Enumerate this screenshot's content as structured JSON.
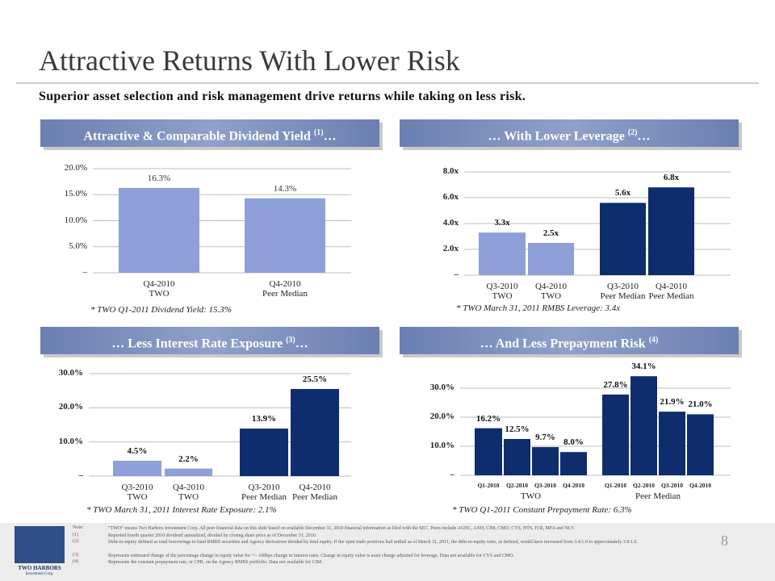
{
  "header": {
    "title": "Attractive Returns With Lower Risk",
    "subtitle": "Superior asset selection and risk management drive returns while taking on less risk."
  },
  "chart_data": [
    {
      "type": "bar",
      "title": "Attractive & Comparable Dividend Yield",
      "title_ref": "(1)",
      "title_end": "…",
      "groups": [
        {
          "color": "#8ea0d8",
          "categories": [
            "Q4-2010\nTWO",
            "Q4-2010\nPeer Median"
          ],
          "values": [
            16.3,
            14.3
          ],
          "value_labels": [
            "16.3%",
            "14.3%"
          ]
        }
      ],
      "ylim": [
        0,
        20
      ],
      "yticks": [
        {
          "value": 0,
          "label": "–"
        },
        {
          "value": 5,
          "label": "5.0%"
        },
        {
          "value": 10,
          "label": "10.0%"
        },
        {
          "value": 15,
          "label": "15.0%"
        },
        {
          "value": 20,
          "label": "20.0%"
        }
      ],
      "grid": true,
      "note": "* TWO Q1-2011  Dividend Yield: 15.3%"
    },
    {
      "type": "bar",
      "title_start": "…",
      "title": "With Lower Leverage",
      "title_ref": "(2)",
      "title_end": "…",
      "groups": [
        {
          "color": "#8ea0d8",
          "categories": [
            "Q3-2010\nTWO",
            "Q4-2010\nTWO"
          ],
          "values": [
            3.3,
            2.5
          ],
          "value_labels": [
            "3.3x",
            "2.5x"
          ]
        },
        {
          "color": "#0d2d6c",
          "categories": [
            "Q3-2010\nPeer Median",
            "Q4-2010\nPeer Median"
          ],
          "values": [
            5.6,
            6.8
          ],
          "value_labels": [
            "5.6x",
            "6.8x"
          ]
        }
      ],
      "ylim": [
        0,
        8
      ],
      "yticks": [
        {
          "value": 0,
          "label": "–"
        },
        {
          "value": 2,
          "label": "2.0x"
        },
        {
          "value": 4,
          "label": "4.0x"
        },
        {
          "value": 6,
          "label": "6.0x"
        },
        {
          "value": 8,
          "label": "8.0x"
        }
      ],
      "grid": true,
      "note": "* TWO March 31, 2011  RMBS Leverage: 3.4x"
    },
    {
      "type": "bar",
      "title_start": "…",
      "title": "Less Interest Rate Exposure",
      "title_ref": "(3)",
      "title_end": "…",
      "groups": [
        {
          "color": "#8ea0d8",
          "categories": [
            "Q3-2010\nTWO",
            "Q4-2010\nTWO"
          ],
          "values": [
            4.5,
            2.2
          ],
          "value_labels": [
            "4.5%",
            "2.2%"
          ]
        },
        {
          "color": "#0d2d6c",
          "categories": [
            "Q3-2010\nPeer Median",
            "Q4-2010\nPeer Median"
          ],
          "values": [
            13.9,
            25.5
          ],
          "value_labels": [
            "13.9%",
            "25.5%"
          ]
        }
      ],
      "ylim": [
        0,
        30
      ],
      "yticks": [
        {
          "value": 0,
          "label": "–"
        },
        {
          "value": 10,
          "label": "10.0%"
        },
        {
          "value": 20,
          "label": "20.0%"
        },
        {
          "value": 30,
          "label": "30.0%"
        }
      ],
      "grid": true,
      "note": "* TWO March 31, 2011  Interest Rate Exposure: 2.1%"
    },
    {
      "type": "bar",
      "title_start": "…",
      "title": "And Less Prepayment Risk",
      "title_ref": "(4)",
      "groups": [
        {
          "name": "TWO",
          "color": "#0d2d6c",
          "categories": [
            "Q1-2010",
            "Q2-2010",
            "Q3-2010",
            "Q4-2010"
          ],
          "values": [
            16.2,
            12.5,
            9.7,
            8.0
          ],
          "value_labels": [
            "16.2%",
            "12.5%",
            "9.7%",
            "8.0%"
          ]
        },
        {
          "name": "Peer Median",
          "color": "#0d2d6c",
          "categories": [
            "Q1-2010",
            "Q2-2010",
            "Q3-2010",
            "Q4-2010"
          ],
          "values": [
            27.8,
            34.1,
            21.9,
            21.0
          ],
          "value_labels": [
            "27.8%",
            "34.1%",
            "21.9%",
            "21.0%"
          ]
        }
      ],
      "ylim": [
        0,
        35
      ],
      "yticks": [
        {
          "value": 0,
          "label": "–"
        },
        {
          "value": 10,
          "label": "10.0%"
        },
        {
          "value": 20,
          "label": "20.0%"
        },
        {
          "value": 30,
          "label": "30.0%"
        }
      ],
      "grid": true,
      "note": "* TWO Q1-2011  Constant Prepayment Rate: 6.3%"
    }
  ],
  "footer": {
    "logo": "TWO HARBORS",
    "logo_sub": "Investment Corp.",
    "page": "8",
    "notes": [
      {
        "marker": "Note:",
        "text": "“TWO” means Two Harbors Investment Corp.  All peer financial data on this slide based on available December 31, 2010 financial information as filed with the SEC.  Peers include AGNC, ANH, CIM, CMO, CYS, HTS, IVR, MFA and NLY."
      },
      {
        "marker": "(1)",
        "text": "Reported fourth quarter 2010 dividend annualized, divided by closing share price as of December 31, 2010."
      },
      {
        "marker": "(2)",
        "text": "Debt-to-equity defined as total borrowings to fund RMBS securities and Agency derivatives divided by total equity. If the open trade positions had settled as of March 31, 2011, the debt-to-equity ratio, as defined, would have increased from 3.4:1.0 to approximately 3.9:1.0."
      },
      {
        "marker": "(3)",
        "text": "Represents estimated change of the percentage change in equity value for +/- 100bps change in interest rates. Change in equity value is asset change adjusted for leverage.  Data not available for CYS and CMO."
      },
      {
        "marker": "(4)",
        "text": "Represents the constant prepayment rate, or CPR, on the Agency RMBS portfolio.  Data not available for CIM."
      }
    ]
  }
}
